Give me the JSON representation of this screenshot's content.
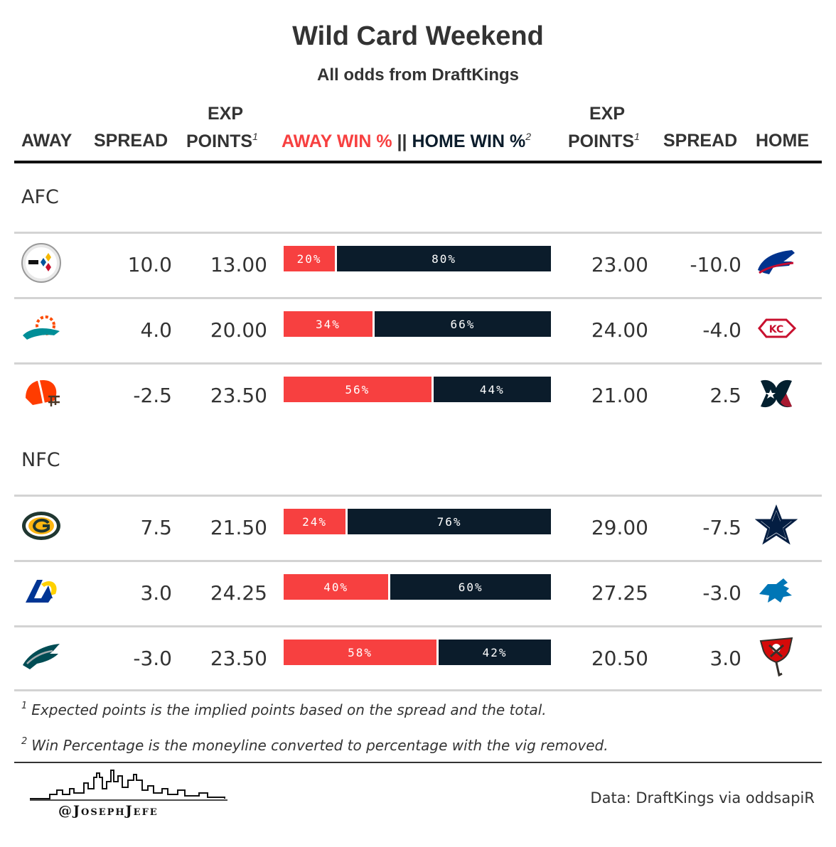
{
  "title": "Wild Card Weekend",
  "subtitle": "All odds from DraftKings",
  "columns": {
    "away": "AWAY",
    "spread": "SPREAD",
    "exp_top": "EXP",
    "points": "POINTS",
    "points_note": "1",
    "away_win": "AWAY WIN %",
    "sep": "||",
    "home_win": "HOME WIN %",
    "win_note": "2",
    "home": "HOME"
  },
  "colors": {
    "away": "#f74040",
    "home": "#0b1c2b"
  },
  "groups": [
    {
      "label": "AFC",
      "games": [
        {
          "away_logo": "steelers-logo",
          "away_spread": "10.0",
          "away_exp": "13.00",
          "away_pct": 20,
          "away_pct_label": "20%",
          "home_pct_label": "80%",
          "home_exp": "23.00",
          "home_spread": "-10.0",
          "home_logo": "bills-logo"
        },
        {
          "away_logo": "dolphins-logo",
          "away_spread": "4.0",
          "away_exp": "20.00",
          "away_pct": 34,
          "away_pct_label": "34%",
          "home_pct_label": "66%",
          "home_exp": "24.00",
          "home_spread": "-4.0",
          "home_logo": "chiefs-logo"
        },
        {
          "away_logo": "browns-logo",
          "away_spread": "-2.5",
          "away_exp": "23.50",
          "away_pct": 56,
          "away_pct_label": "56%",
          "home_pct_label": "44%",
          "home_exp": "21.00",
          "home_spread": "2.5",
          "home_logo": "texans-logo"
        }
      ]
    },
    {
      "label": "NFC",
      "games": [
        {
          "away_logo": "packers-logo",
          "away_spread": "7.5",
          "away_exp": "21.50",
          "away_pct": 24,
          "away_pct_label": "24%",
          "home_pct_label": "76%",
          "home_exp": "29.00",
          "home_spread": "-7.5",
          "home_logo": "cowboys-logo"
        },
        {
          "away_logo": "rams-logo",
          "away_spread": "3.0",
          "away_exp": "24.25",
          "away_pct": 40,
          "away_pct_label": "40%",
          "home_pct_label": "60%",
          "home_exp": "27.25",
          "home_spread": "-3.0",
          "home_logo": "lions-logo"
        },
        {
          "away_logo": "eagles-logo",
          "away_spread": "-3.0",
          "away_exp": "23.50",
          "away_pct": 58,
          "away_pct_label": "58%",
          "home_pct_label": "42%",
          "home_exp": "20.50",
          "home_spread": "3.0",
          "home_logo": "buccaneers-logo"
        }
      ]
    }
  ],
  "footnotes": [
    {
      "mark": "1",
      "text": "Expected points is the implied points based on the spread and the total."
    },
    {
      "mark": "2",
      "text": "Win Percentage is the moneyline converted to percentage with the vig removed."
    }
  ],
  "handle": "@JosephJefe",
  "credit": "Data: DraftKings via oddsapiR"
}
